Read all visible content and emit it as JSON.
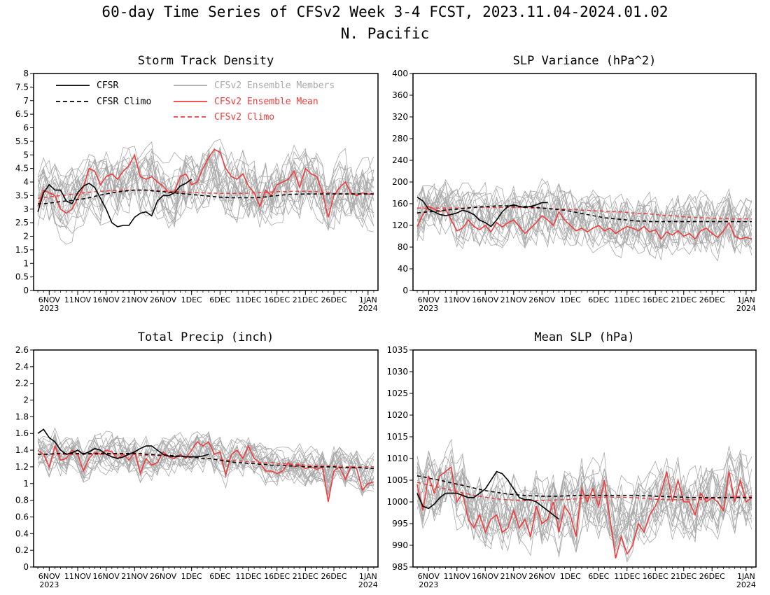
{
  "header": {
    "title": "60-day Time Series of CFSv2 Week 3-4 FCST, 2023.11.04-2024.01.02",
    "region": "N. Pacific"
  },
  "x_axis": {
    "days": 60,
    "tick_labels": [
      "6NOV",
      "11NOV",
      "16NOV",
      "21NOV",
      "26NOV",
      "1DEC",
      "6DEC",
      "11DEC",
      "16DEC",
      "21DEC",
      "26DEC",
      "1JAN"
    ],
    "tick_day_index": [
      2,
      7,
      12,
      17,
      22,
      27,
      32,
      37,
      42,
      47,
      52,
      58
    ],
    "year_labels": [
      {
        "label": "2023",
        "day_index": 2
      },
      {
        "label": "2024",
        "day_index": 58
      }
    ]
  },
  "legend": {
    "cfsr": "CFSR",
    "cfsr_climo": "CFSR Climo",
    "members": "CFSv2 Ensemble Members",
    "mean": "CFSv2 Ensemble Mean",
    "climo": "CFSv2 Climo"
  },
  "colors": {
    "cfsr": "#000000",
    "cfsr_climo": "#000000",
    "members": "#a8a8a8",
    "mean": "#f03c3c",
    "climo": "#f03c3c"
  },
  "chart_data": [
    {
      "type": "line",
      "title": "Storm Track Density",
      "ylim": [
        0,
        8
      ],
      "yticks": [
        "0",
        "0.5",
        "1",
        "1.5",
        "2",
        "2.5",
        "3",
        "3.5",
        "4",
        "4.5",
        "5",
        "5.5",
        "6",
        "6.5",
        "7",
        "7.5",
        "8"
      ],
      "member_count": 20,
      "member_spread": 0.9,
      "series": [
        {
          "name": "CFSR",
          "values": [
            2.9,
            3.6,
            3.9,
            3.7,
            3.7,
            3.3,
            3.2,
            3.6,
            3.85,
            3.95,
            3.8,
            3.4,
            3.0,
            2.5,
            2.35,
            2.4,
            2.4,
            2.7,
            2.85,
            2.9,
            2.75,
            3.3,
            3.5,
            3.5,
            3.6,
            3.85,
            3.95,
            4.1
          ]
        },
        {
          "name": "CFSR Climo",
          "values": [
            3.2,
            3.2,
            3.22,
            3.25,
            3.28,
            3.3,
            3.32,
            3.35,
            3.38,
            3.42,
            3.47,
            3.52,
            3.56,
            3.6,
            3.63,
            3.66,
            3.68,
            3.7,
            3.7,
            3.7,
            3.68,
            3.66,
            3.64,
            3.62,
            3.6,
            3.58,
            3.56,
            3.54,
            3.52,
            3.5,
            3.48,
            3.46,
            3.44,
            3.43,
            3.42,
            3.42,
            3.42,
            3.42,
            3.42,
            3.43,
            3.45,
            3.48,
            3.5,
            3.52,
            3.54,
            3.55,
            3.55,
            3.56,
            3.56,
            3.56,
            3.56,
            3.56,
            3.56,
            3.56,
            3.56,
            3.56,
            3.56,
            3.56,
            3.56,
            3.56
          ]
        },
        {
          "name": "CFSv2 Ensemble Mean",
          "values": [
            3.1,
            3.7,
            3.6,
            3.5,
            3.0,
            2.85,
            3.0,
            3.4,
            3.8,
            4.5,
            4.4,
            3.9,
            4.2,
            4.3,
            4.1,
            4.4,
            4.6,
            5.0,
            4.2,
            4.1,
            4.2,
            4.0,
            3.85,
            3.6,
            3.65,
            4.2,
            4.3,
            3.9,
            4.0,
            4.5,
            4.9,
            5.2,
            5.1,
            4.5,
            4.2,
            4.1,
            4.3,
            3.85,
            3.6,
            3.1,
            3.7,
            3.5,
            3.9,
            4.0,
            4.1,
            4.4,
            3.8,
            4.5,
            4.3,
            4.2,
            3.6,
            2.7,
            3.5,
            3.8,
            4.0,
            3.6,
            3.5,
            3.6,
            3.55,
            3.55
          ]
        },
        {
          "name": "CFSv2 Climo",
          "values": [
            3.4,
            3.42,
            3.45,
            3.47,
            3.5,
            3.52,
            3.55,
            3.57,
            3.6,
            3.62,
            3.64,
            3.66,
            3.67,
            3.68,
            3.69,
            3.7,
            3.7,
            3.7,
            3.7,
            3.7,
            3.69,
            3.68,
            3.67,
            3.66,
            3.65,
            3.64,
            3.63,
            3.62,
            3.61,
            3.6,
            3.59,
            3.59,
            3.58,
            3.58,
            3.58,
            3.58,
            3.58,
            3.59,
            3.6,
            3.61,
            3.62,
            3.63,
            3.64,
            3.65,
            3.65,
            3.66,
            3.66,
            3.66,
            3.65,
            3.64,
            3.62,
            3.6,
            3.58,
            3.57,
            3.56,
            3.56,
            3.56,
            3.56,
            3.56,
            3.56
          ]
        }
      ]
    },
    {
      "type": "line",
      "title": "SLP Variance (hPa^2)",
      "ylim": [
        0,
        400
      ],
      "yticks": [
        "0",
        "40",
        "80",
        "120",
        "160",
        "200",
        "240",
        "280",
        "320",
        "360",
        "400"
      ],
      "member_count": 20,
      "member_spread": 40,
      "series": [
        {
          "name": "CFSR",
          "values": [
            172,
            165,
            150,
            145,
            140,
            138,
            140,
            143,
            148,
            145,
            140,
            130,
            125,
            118,
            130,
            145,
            155,
            158,
            155,
            153,
            155,
            158,
            162,
            162
          ]
        },
        {
          "name": "CFSR Climo",
          "values": [
            143,
            144,
            145,
            146,
            147,
            148,
            149,
            150,
            151,
            152,
            153,
            154,
            155,
            155,
            156,
            156,
            156,
            156,
            155,
            155,
            154,
            153,
            152,
            151,
            150,
            149,
            148,
            146,
            144,
            142,
            140,
            138,
            136,
            134,
            133,
            132,
            131,
            130,
            129,
            128,
            128,
            127,
            127,
            127,
            127,
            127,
            127,
            127,
            127,
            127,
            127,
            127,
            127,
            127,
            127,
            127,
            127,
            127,
            127,
            127
          ]
        },
        {
          "name": "CFSv2 Ensemble Mean",
          "values": [
            118,
            140,
            155,
            150,
            145,
            150,
            130,
            110,
            115,
            130,
            118,
            112,
            120,
            108,
            125,
            117,
            125,
            130,
            118,
            105,
            115,
            125,
            138,
            130,
            120,
            145,
            130,
            120,
            110,
            115,
            108,
            115,
            120,
            110,
            115,
            105,
            112,
            118,
            115,
            110,
            118,
            108,
            112,
            95,
            108,
            102,
            110,
            100,
            105,
            95,
            110,
            115,
            105,
            98,
            110,
            125,
            100,
            95,
            98,
            95
          ]
        },
        {
          "name": "CFSv2 Climo",
          "values": [
            152,
            152,
            152,
            152,
            152,
            152,
            152,
            152,
            152,
            153,
            153,
            153,
            153,
            153,
            153,
            153,
            153,
            153,
            153,
            153,
            152,
            152,
            152,
            151,
            151,
            150,
            150,
            149,
            149,
            148,
            148,
            147,
            147,
            146,
            146,
            145,
            145,
            144,
            143,
            142,
            142,
            141,
            140,
            139,
            138,
            138,
            137,
            136,
            135,
            135,
            134,
            134,
            133,
            133,
            133,
            132,
            132,
            132,
            132,
            132
          ]
        }
      ]
    },
    {
      "type": "line",
      "title": "Total Precip (inch)",
      "ylim": [
        0,
        2.6
      ],
      "yticks": [
        "0",
        "0.2",
        "0.4",
        "0.6",
        "0.8",
        "1",
        "1.2",
        "1.4",
        "1.6",
        "1.8",
        "2",
        "2.2",
        "2.4",
        "2.6"
      ],
      "member_count": 20,
      "member_spread": 0.17,
      "series": [
        {
          "name": "CFSR",
          "values": [
            1.6,
            1.65,
            1.55,
            1.5,
            1.4,
            1.35,
            1.37,
            1.4,
            1.35,
            1.38,
            1.42,
            1.4,
            1.35,
            1.32,
            1.3,
            1.32,
            1.35,
            1.38,
            1.42,
            1.45,
            1.45,
            1.4,
            1.35,
            1.33,
            1.32,
            1.33,
            1.32,
            1.32,
            1.32,
            1.33,
            1.35
          ]
        },
        {
          "name": "CFSR Climo",
          "values": [
            1.35,
            1.35,
            1.35,
            1.36,
            1.36,
            1.36,
            1.36,
            1.36,
            1.36,
            1.36,
            1.36,
            1.36,
            1.36,
            1.36,
            1.36,
            1.36,
            1.36,
            1.36,
            1.36,
            1.35,
            1.35,
            1.34,
            1.34,
            1.34,
            1.33,
            1.33,
            1.32,
            1.32,
            1.31,
            1.3,
            1.3,
            1.29,
            1.28,
            1.27,
            1.26,
            1.25,
            1.25,
            1.24,
            1.24,
            1.23,
            1.23,
            1.22,
            1.22,
            1.22,
            1.21,
            1.21,
            1.21,
            1.2,
            1.2,
            1.2,
            1.2,
            1.2,
            1.2,
            1.19,
            1.19,
            1.19,
            1.19,
            1.19,
            1.18,
            1.18
          ]
        },
        {
          "name": "CFSv2 Ensemble Mean",
          "values": [
            1.4,
            1.35,
            1.2,
            1.45,
            1.28,
            1.3,
            1.4,
            1.35,
            1.15,
            1.3,
            1.38,
            1.35,
            1.4,
            1.38,
            1.3,
            1.35,
            1.28,
            1.38,
            1.12,
            1.3,
            1.22,
            1.25,
            1.38,
            1.32,
            1.3,
            1.35,
            1.3,
            1.4,
            1.5,
            1.45,
            1.5,
            1.35,
            1.38,
            1.1,
            1.35,
            1.4,
            1.3,
            1.45,
            1.3,
            1.25,
            1.15,
            1.15,
            1.12,
            1.15,
            1.25,
            1.2,
            1.22,
            1.18,
            1.2,
            1.17,
            1.2,
            0.78,
            1.15,
            1.2,
            1.05,
            1.2,
            1.18,
            0.92,
            1.0,
            1.02
          ]
        },
        {
          "name": "CFSv2 Climo",
          "values": [
            1.35,
            1.35,
            1.35,
            1.35,
            1.35,
            1.35,
            1.35,
            1.35,
            1.35,
            1.35,
            1.35,
            1.35,
            1.35,
            1.35,
            1.35,
            1.35,
            1.35,
            1.35,
            1.34,
            1.34,
            1.34,
            1.34,
            1.33,
            1.33,
            1.33,
            1.32,
            1.32,
            1.31,
            1.31,
            1.3,
            1.3,
            1.29,
            1.29,
            1.28,
            1.28,
            1.27,
            1.27,
            1.26,
            1.26,
            1.25,
            1.25,
            1.25,
            1.24,
            1.24,
            1.23,
            1.23,
            1.23,
            1.22,
            1.22,
            1.22,
            1.21,
            1.21,
            1.21,
            1.21,
            1.2,
            1.2,
            1.2,
            1.2,
            1.2,
            1.2
          ]
        }
      ]
    },
    {
      "type": "line",
      "title": "Mean SLP (hPa)",
      "ylim": [
        985,
        1035
      ],
      "yticks": [
        "985",
        "990",
        "995",
        "1000",
        "1005",
        "1010",
        "1015",
        "1020",
        "1025",
        "1030",
        "1035"
      ],
      "member_count": 20,
      "member_spread": 6,
      "series": [
        {
          "name": "CFSR",
          "values": [
            1002,
            999,
            998.5,
            999.5,
            1001,
            1002,
            1002,
            1002,
            1001.5,
            1001,
            1001,
            1002,
            1003,
            1005,
            1007,
            1006.5,
            1005,
            1003,
            1001,
            1000.5,
            1000.5,
            1000,
            999,
            998,
            997,
            996
          ]
        },
        {
          "name": "CFSR Climo",
          "values": [
            1006,
            1005.8,
            1005.5,
            1005.2,
            1005,
            1004.7,
            1004.4,
            1004.1,
            1003.8,
            1003.5,
            1003.2,
            1002.9,
            1002.6,
            1002.4,
            1002.2,
            1002,
            1001.8,
            1001.7,
            1001.6,
            1001.5,
            1001.4,
            1001.4,
            1001.3,
            1001.3,
            1001.3,
            1001.3,
            1001.4,
            1001.4,
            1001.5,
            1001.5,
            1001.5,
            1001.5,
            1001.5,
            1001.5,
            1001.5,
            1001.5,
            1001.5,
            1001.5,
            1001.5,
            1001.5,
            1001.4,
            1001.4,
            1001.3,
            1001.3,
            1001.2,
            1001.2,
            1001.1,
            1001.1,
            1001,
            1001,
            1001,
            1001,
            1001,
            1001,
            1001,
            1001,
            1001,
            1001,
            1001,
            1001
          ]
        },
        {
          "name": "CFSv2 Ensemble Mean",
          "values": [
            1004,
            998,
            1006,
            1002,
            1006,
            1007,
            1008,
            1000,
            1002,
            996,
            994,
            997,
            993,
            996,
            997,
            993,
            994,
            998,
            994,
            996,
            992,
            999,
            995,
            996,
            1000,
            993,
            999,
            997,
            992,
            1003,
            1000,
            1003,
            999,
            1005,
            996,
            987,
            992,
            988,
            990,
            995,
            993,
            997,
            999,
            1002,
            1007,
            1000,
            1005,
            1000,
            1000,
            997,
            1002,
            1000,
            1001,
            1000,
            998,
            1007,
            1000,
            1005,
            1000,
            1001
          ]
        },
        {
          "name": "CFSv2 Climo",
          "values": [
            1004.5,
            1004.2,
            1003.9,
            1003.6,
            1003.3,
            1003,
            1002.7,
            1002.4,
            1002.1,
            1001.8,
            1001.5,
            1001.3,
            1001.1,
            1000.9,
            1000.7,
            1000.6,
            1000.5,
            1000.4,
            1000.3,
            1000.3,
            1000.3,
            1000.3,
            1000.3,
            1000.4,
            1000.4,
            1000.5,
            1000.5,
            1000.6,
            1000.7,
            1000.8,
            1000.9,
            1001,
            1001,
            1001.1,
            1001.1,
            1001.1,
            1001.1,
            1001,
            1001,
            1000.9,
            1000.8,
            1000.7,
            1000.6,
            1000.6,
            1000.5,
            1000.5,
            1000.5,
            1000.5,
            1000.5,
            1000.5,
            1000.6,
            1000.7,
            1000.8,
            1000.9,
            1001,
            1001.1,
            1001.2,
            1001.3,
            1001.3,
            1001.3
          ]
        }
      ]
    }
  ]
}
